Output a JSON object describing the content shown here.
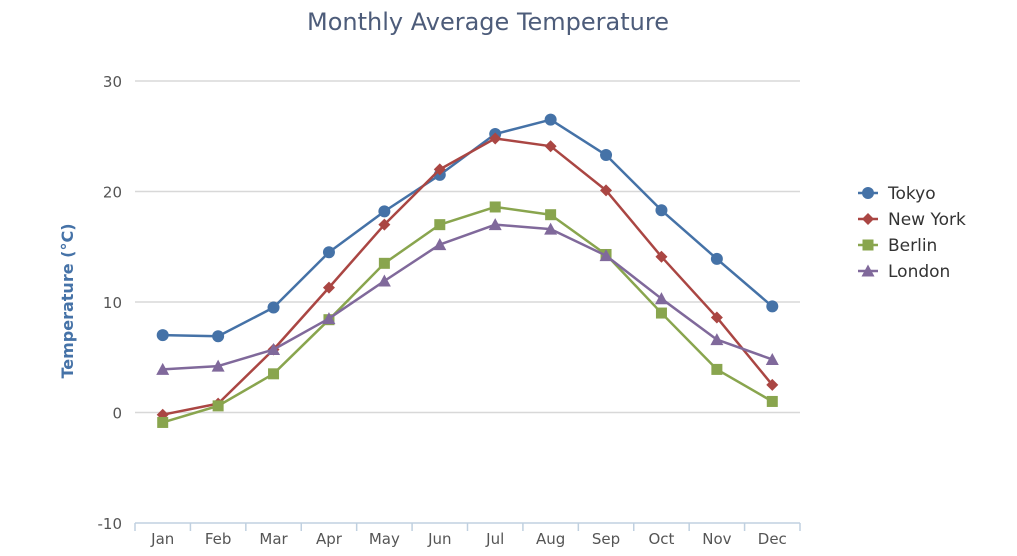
{
  "chart_data": {
    "type": "line",
    "title": "Monthly Average Temperature",
    "xlabel": "",
    "ylabel": "Temperature (°C)",
    "ylim": [
      -10,
      30
    ],
    "yticks": [
      -10,
      0,
      10,
      20,
      30
    ],
    "grid": true,
    "legend_position": "right",
    "categories": [
      "Jan",
      "Feb",
      "Mar",
      "Apr",
      "May",
      "Jun",
      "Jul",
      "Aug",
      "Sep",
      "Oct",
      "Nov",
      "Dec"
    ],
    "series": [
      {
        "name": "Tokyo",
        "color": "#4572A7",
        "marker": "circle",
        "values": [
          7.0,
          6.9,
          9.5,
          14.5,
          18.2,
          21.5,
          25.2,
          26.5,
          23.3,
          18.3,
          13.9,
          9.6
        ]
      },
      {
        "name": "New York",
        "color": "#AA4643",
        "marker": "diamond",
        "values": [
          -0.2,
          0.8,
          5.7,
          11.3,
          17.0,
          22.0,
          24.8,
          24.1,
          20.1,
          14.1,
          8.6,
          2.5
        ]
      },
      {
        "name": "Berlin",
        "color": "#89A54E",
        "marker": "square",
        "values": [
          -0.9,
          0.6,
          3.5,
          8.4,
          13.5,
          17.0,
          18.6,
          17.9,
          14.3,
          9.0,
          3.9,
          1.0
        ]
      },
      {
        "name": "London",
        "color": "#80699B",
        "marker": "triangle",
        "values": [
          3.9,
          4.2,
          5.7,
          8.5,
          11.9,
          15.2,
          17.0,
          16.6,
          14.2,
          10.3,
          6.6,
          4.8
        ]
      }
    ]
  },
  "colors": {
    "title": "#4d5c7a",
    "axis_label": "#4572A7",
    "grid": "#d8d8d8",
    "tick_text": "#555555",
    "axis_line": "#c0d0e0"
  }
}
